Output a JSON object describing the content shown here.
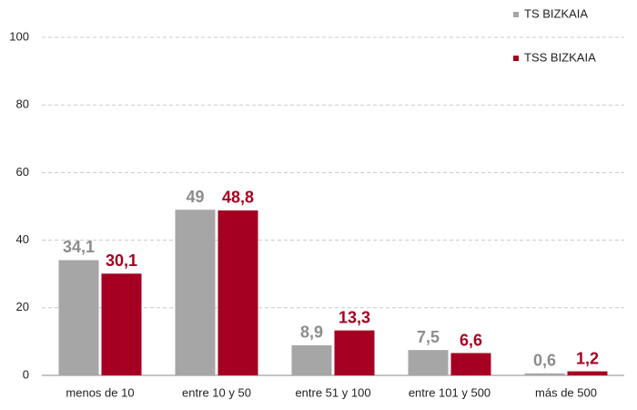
{
  "chart_data": {
    "type": "bar",
    "categories": [
      "menos de 10",
      "entre 10 y 50",
      "entre 51 y 100",
      "entre 101 y 500",
      "más de 500"
    ],
    "series": [
      {
        "name": "TS BIZKAIA",
        "color": "#a6a6a6",
        "values": [
          34.1,
          49,
          8.9,
          7.5,
          0.6
        ],
        "value_labels": [
          "34,1",
          "49",
          "8,9",
          "7,5",
          "0,6"
        ]
      },
      {
        "name": "TSS BIZKAIA",
        "color": "#a50021",
        "values": [
          30.1,
          48.8,
          13.3,
          6.6,
          1.2
        ],
        "value_labels": [
          "30,1",
          "48,8",
          "13,3",
          "6,6",
          "1,2"
        ]
      }
    ],
    "ylim": [
      0,
      100
    ],
    "yticks": [
      0,
      20,
      40,
      60,
      80,
      100
    ],
    "grid": true,
    "legend": "top-right"
  }
}
